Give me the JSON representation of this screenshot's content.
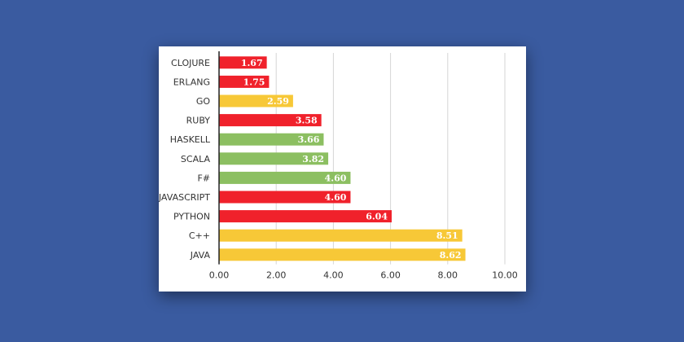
{
  "chart_data": {
    "type": "bar",
    "orientation": "horizontal",
    "title": "",
    "xlabel": "",
    "ylabel": "",
    "xlim": [
      0,
      10
    ],
    "x_ticks": [
      "0.00",
      "2.00",
      "4.00",
      "6.00",
      "8.00",
      "10.00"
    ],
    "grid": "vertical",
    "categories": [
      "CLOJURE",
      "ERLANG",
      "GO",
      "RUBY",
      "HASKELL",
      "SCALA",
      "F#",
      "JAVASCRIPT",
      "PYTHON",
      "C++",
      "JAVA"
    ],
    "values": [
      1.67,
      1.75,
      2.59,
      3.58,
      3.66,
      3.82,
      4.6,
      4.6,
      6.04,
      8.51,
      8.62
    ],
    "value_labels": [
      "1.67",
      "1.75",
      "2.59",
      "3.58",
      "3.66",
      "3.82",
      "4.60",
      "4.60",
      "6.04",
      "8.51",
      "8.62"
    ],
    "bar_colors": [
      "#f0212b",
      "#f0212b",
      "#f7c837",
      "#f0212b",
      "#8cbf61",
      "#8cbf61",
      "#8cbf61",
      "#f0212b",
      "#f0212b",
      "#f7c837",
      "#f7c837"
    ]
  }
}
